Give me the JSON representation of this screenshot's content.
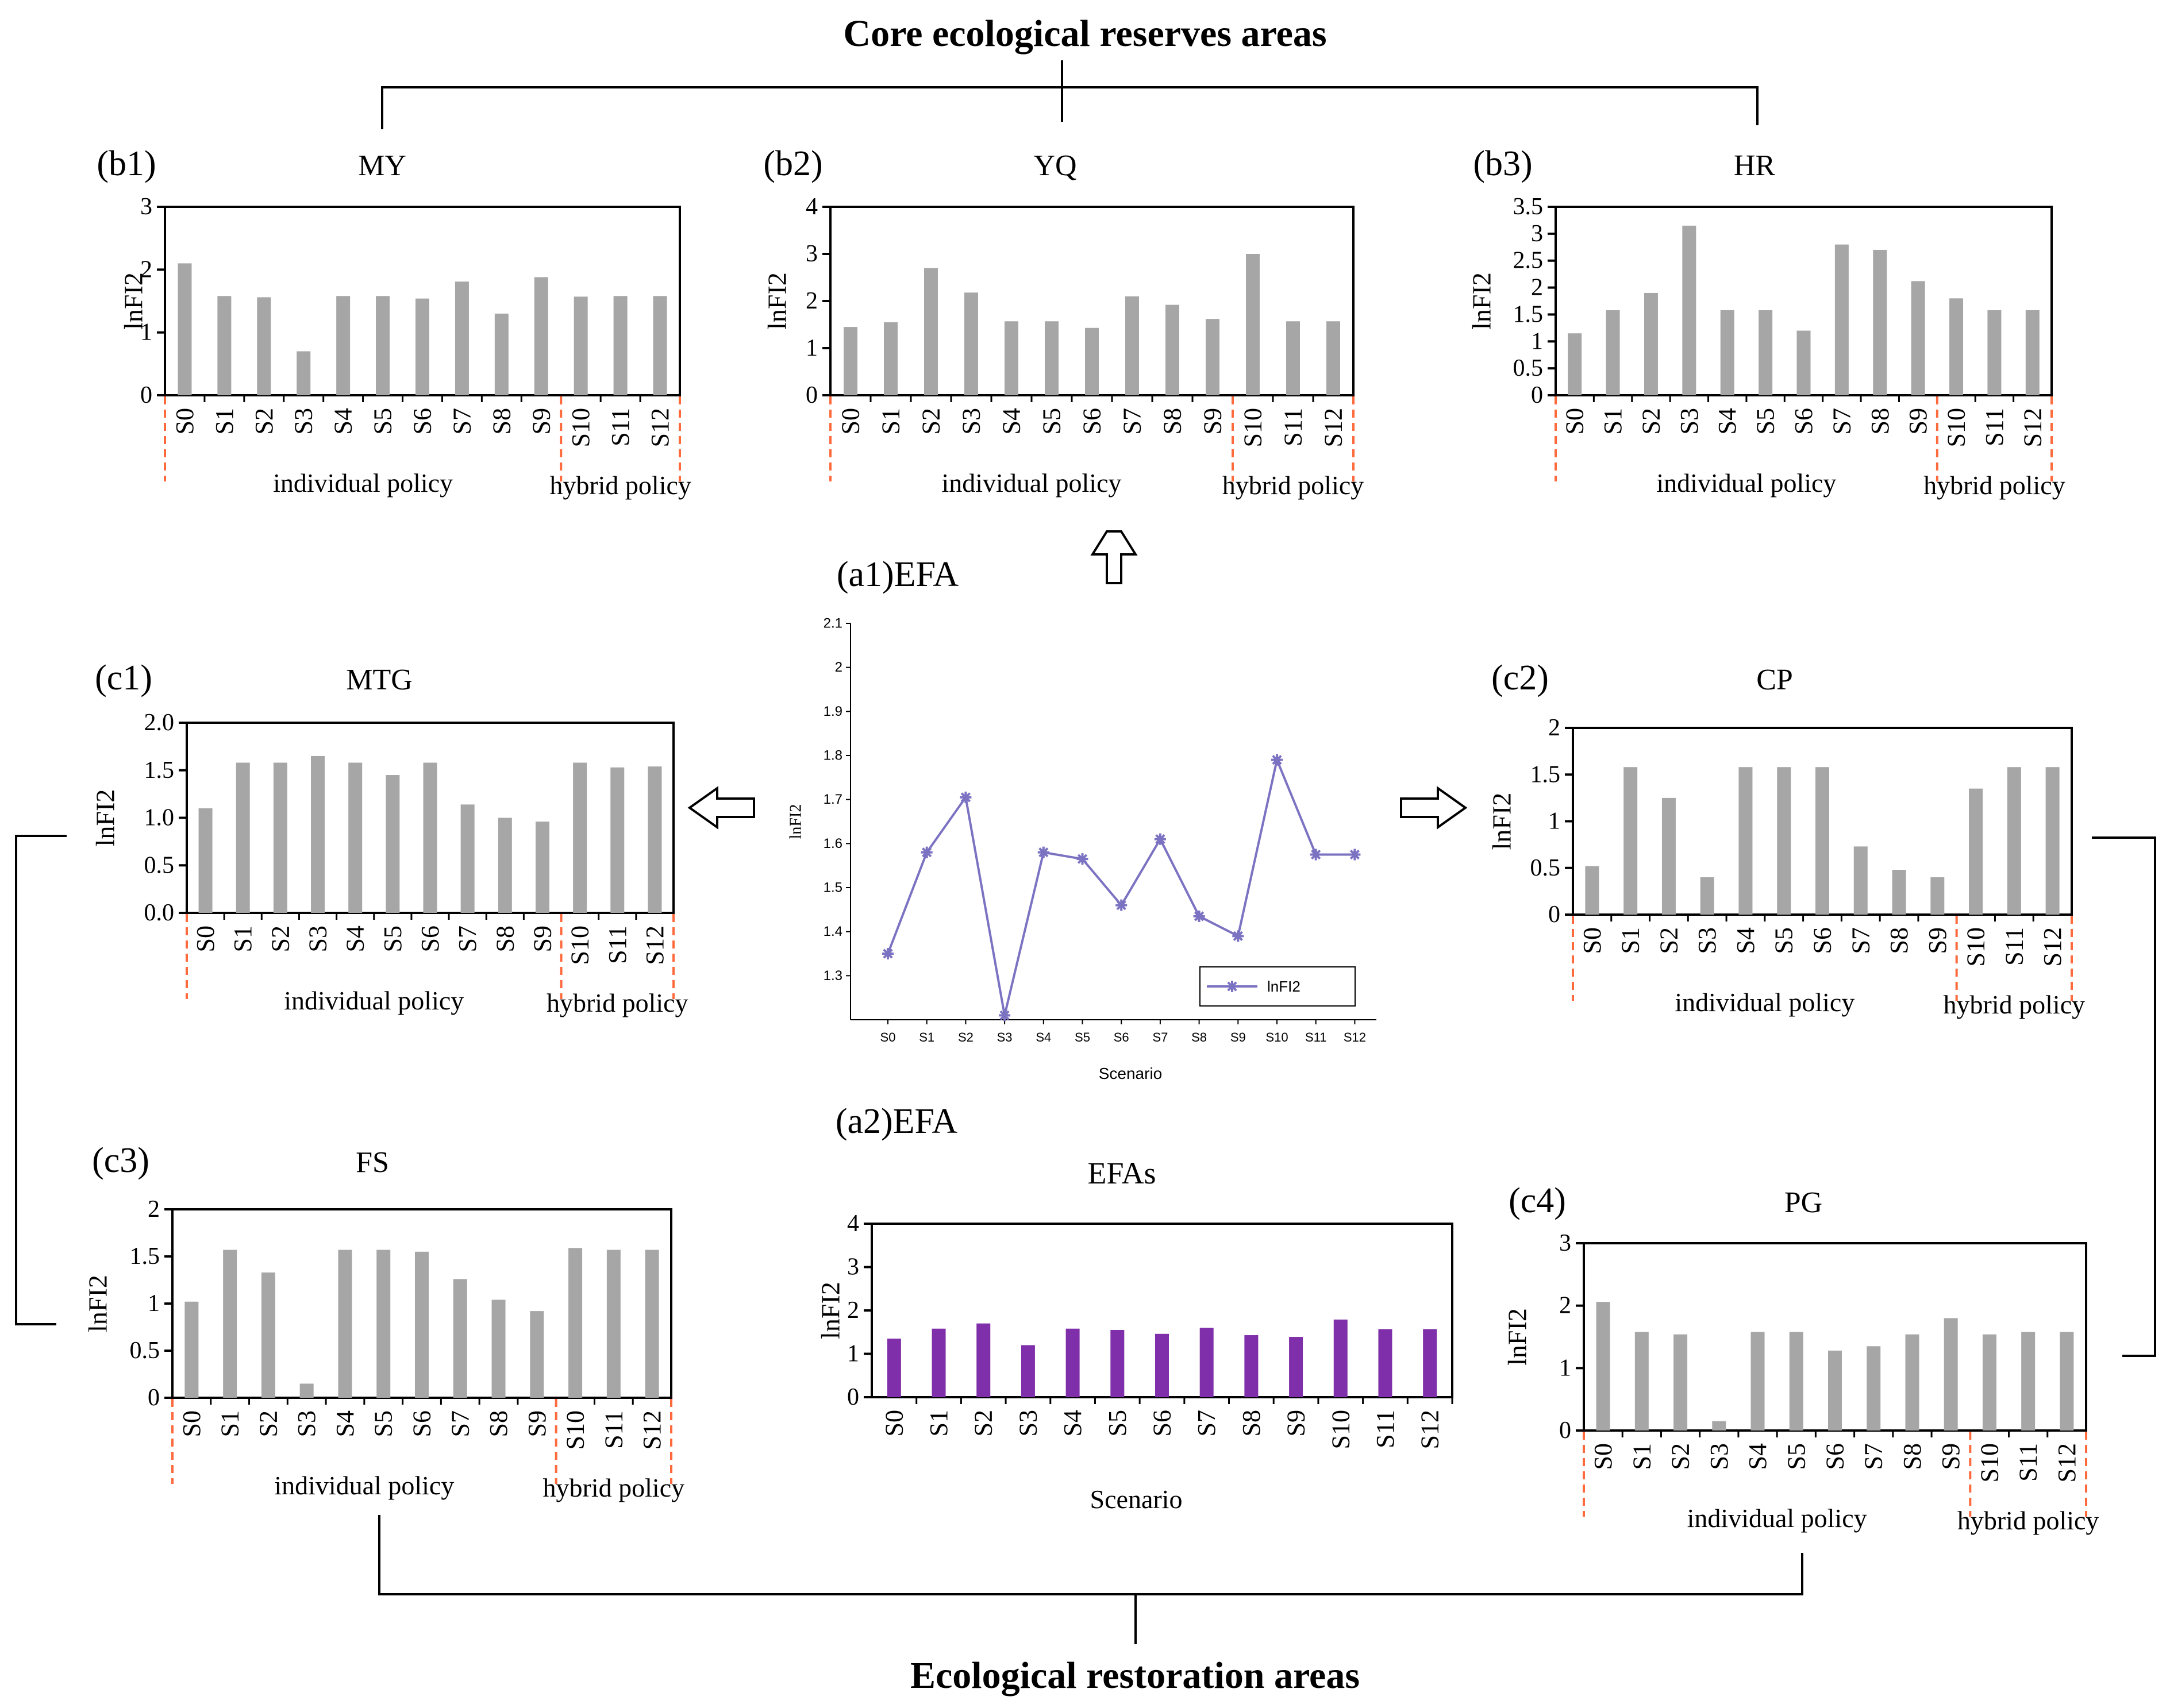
{
  "titles": {
    "top": "Core ecological reserves areas",
    "bottom": "Ecological restoration areas"
  },
  "colors": {
    "gray_bar": "#a6a6a6",
    "purple_bar": "#7f2fa9",
    "line": "#7b72c2",
    "policy_divider": "#ff6a3d",
    "axis": "#000000"
  },
  "policy_labels": {
    "individual": "individual  policy",
    "hybrid": "hybrid policy"
  },
  "chart_data": [
    {
      "id": "b1",
      "tag": "(b1)",
      "title": "MY",
      "type": "bar",
      "ylabel": "lnFI2",
      "ylim": [
        0,
        3
      ],
      "yticks": [
        "0",
        "1",
        "2",
        "3"
      ],
      "categories": [
        "S0",
        "S1",
        "S2",
        "S3",
        "S4",
        "S5",
        "S6",
        "S7",
        "S8",
        "S9",
        "S10",
        "S11",
        "S12"
      ],
      "values": [
        2.1,
        1.58,
        1.56,
        0.7,
        1.58,
        1.58,
        1.54,
        1.81,
        1.3,
        1.88,
        1.57,
        1.58,
        1.58
      ]
    },
    {
      "id": "b2",
      "tag": "(b2)",
      "title": "YQ",
      "type": "bar",
      "ylabel": "lnFI2",
      "ylim": [
        0,
        4
      ],
      "yticks": [
        "0",
        "1",
        "2",
        "3",
        "4"
      ],
      "categories": [
        "S0",
        "S1",
        "S2",
        "S3",
        "S4",
        "S5",
        "S6",
        "S7",
        "S8",
        "S9",
        "S10",
        "S11",
        "S12"
      ],
      "values": [
        1.45,
        1.55,
        2.7,
        2.18,
        1.57,
        1.57,
        1.43,
        2.1,
        1.92,
        1.62,
        3.0,
        1.57,
        1.57
      ]
    },
    {
      "id": "b3",
      "tag": "(b3)",
      "title": "HR",
      "type": "bar",
      "ylabel": "lnFI2",
      "ylim": [
        0,
        3.5
      ],
      "yticks": [
        "0",
        "0.5",
        "1",
        "1.5",
        "2",
        "2.5",
        "3",
        "3.5"
      ],
      "categories": [
        "S0",
        "S1",
        "S2",
        "S3",
        "S4",
        "S5",
        "S6",
        "S7",
        "S8",
        "S9",
        "S10",
        "S11",
        "S12"
      ],
      "values": [
        1.15,
        1.58,
        1.9,
        3.15,
        1.58,
        1.58,
        1.2,
        2.8,
        2.7,
        2.12,
        1.8,
        1.58,
        1.58
      ]
    },
    {
      "id": "c1",
      "tag": "(c1)",
      "title": "MTG",
      "type": "bar",
      "ylabel": "lnFI2",
      "ylim": [
        0,
        2
      ],
      "yticks": [
        "0.0",
        "0.5",
        "1.0",
        "1.5",
        "2.0"
      ],
      "categories": [
        "S0",
        "S1",
        "S2",
        "S3",
        "S4",
        "S5",
        "S6",
        "S7",
        "S8",
        "S9",
        "S10",
        "S11",
        "S12"
      ],
      "values": [
        1.1,
        1.58,
        1.58,
        1.65,
        1.58,
        1.45,
        1.58,
        1.14,
        1.0,
        0.96,
        1.58,
        1.53,
        1.54
      ]
    },
    {
      "id": "c2",
      "tag": "(c2)",
      "title": "CP",
      "type": "bar",
      "ylabel": "lnFI2",
      "ylim": [
        0,
        2
      ],
      "yticks": [
        "0",
        "0.5",
        "1",
        "1.5",
        "2"
      ],
      "categories": [
        "S0",
        "S1",
        "S2",
        "S3",
        "S4",
        "S5",
        "S6",
        "S7",
        "S8",
        "S9",
        "S10",
        "S11",
        "S12"
      ],
      "values": [
        0.52,
        1.58,
        1.25,
        0.4,
        1.58,
        1.58,
        1.58,
        0.73,
        0.48,
        0.4,
        1.35,
        1.58,
        1.58
      ]
    },
    {
      "id": "c3",
      "tag": "(c3)",
      "title": "FS",
      "type": "bar",
      "ylabel": "lnFI2",
      "ylim": [
        0,
        2
      ],
      "yticks": [
        "0",
        "0.5",
        "1",
        "1.5",
        "2"
      ],
      "categories": [
        "S0",
        "S1",
        "S2",
        "S3",
        "S4",
        "S5",
        "S6",
        "S7",
        "S8",
        "S9",
        "S10",
        "S11",
        "S12"
      ],
      "values": [
        1.02,
        1.57,
        1.33,
        0.15,
        1.57,
        1.57,
        1.55,
        1.26,
        1.04,
        0.92,
        1.59,
        1.57,
        1.57
      ]
    },
    {
      "id": "c4",
      "tag": "(c4)",
      "title": "PG",
      "type": "bar",
      "ylabel": "lnFI2",
      "ylim": [
        0,
        3
      ],
      "yticks": [
        "0",
        "1",
        "2",
        "3"
      ],
      "categories": [
        "S0",
        "S1",
        "S2",
        "S3",
        "S4",
        "S5",
        "S6",
        "S7",
        "S8",
        "S9",
        "S10",
        "S11",
        "S12"
      ],
      "values": [
        2.06,
        1.58,
        1.54,
        0.15,
        1.58,
        1.58,
        1.28,
        1.35,
        1.54,
        1.8,
        1.54,
        1.58,
        1.58
      ]
    },
    {
      "id": "a1",
      "tag": "(a1)EFA",
      "type": "line",
      "xlabel": "Scenario",
      "ylabel": "lnFI2",
      "ylim": [
        1.2,
        2.1
      ],
      "yticks": [
        "1.3",
        "1.4",
        "1.5",
        "1.6",
        "1.7",
        "1.8",
        "1.9",
        "2",
        "2.1"
      ],
      "legend": "lnFI2",
      "legend_position": "bottom-right",
      "categories": [
        "S0",
        "S1",
        "S2",
        "S3",
        "S4",
        "S5",
        "S6",
        "S7",
        "S8",
        "S9",
        "S10",
        "S11",
        "S12"
      ],
      "values": [
        1.35,
        1.58,
        1.705,
        1.21,
        1.58,
        1.565,
        1.46,
        1.61,
        1.435,
        1.39,
        1.79,
        1.575,
        1.575
      ]
    },
    {
      "id": "a2",
      "tag": "(a2)EFA",
      "title": "EFAs",
      "type": "bar",
      "xlabel": "Scenario",
      "ylabel": "lnFI2",
      "ylim": [
        0,
        4
      ],
      "yticks": [
        "0",
        "1",
        "2",
        "3",
        "4"
      ],
      "categories": [
        "S0",
        "S1",
        "S2",
        "S3",
        "S4",
        "S5",
        "S6",
        "S7",
        "S8",
        "S9",
        "S10",
        "S11",
        "S12"
      ],
      "values": [
        1.35,
        1.58,
        1.7,
        1.2,
        1.58,
        1.55,
        1.46,
        1.6,
        1.43,
        1.39,
        1.79,
        1.57,
        1.57
      ]
    }
  ]
}
